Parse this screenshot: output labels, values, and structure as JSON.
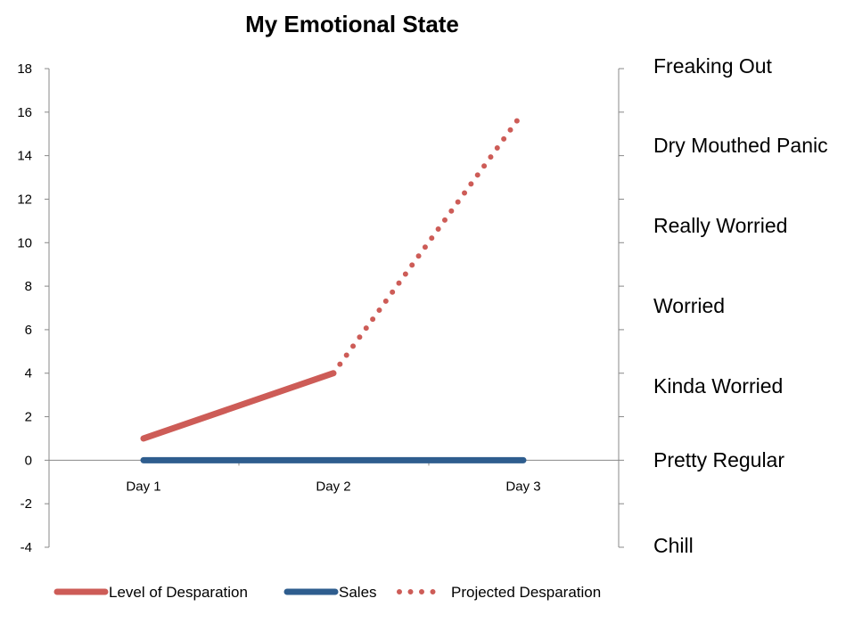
{
  "chart_data": {
    "type": "line",
    "title": "My Emotional State",
    "categories": [
      "Day 1",
      "Day 2",
      "Day 3"
    ],
    "ylim": [
      -4,
      18
    ],
    "y_ticks": [
      "18",
      "16",
      "14",
      "12",
      "10",
      "8",
      "6",
      "4",
      "2",
      "0",
      "-2",
      "-4"
    ],
    "grid": false,
    "legend_position": "bottom",
    "right_axis_labels": [
      "Freaking Out",
      "Dry Mouthed Panic",
      "Really Worried",
      "Worried",
      "Kinda Worried",
      "Pretty Regular",
      "Chill"
    ],
    "series": [
      {
        "name": "Level of Desparation",
        "x": [
          "Day 1",
          "Day 2"
        ],
        "values": [
          1,
          4
        ],
        "color": "#cd5c57",
        "style": "solid"
      },
      {
        "name": "Sales",
        "x": [
          "Day 1",
          "Day 2",
          "Day 3"
        ],
        "values": [
          0,
          0,
          0
        ],
        "color": "#2e5d8e",
        "style": "solid"
      },
      {
        "name": "Projected Desparation",
        "x": [
          "Day 2",
          "Day 3"
        ],
        "values": [
          4,
          16
        ],
        "color": "#cd5c57",
        "style": "dotted"
      }
    ]
  }
}
